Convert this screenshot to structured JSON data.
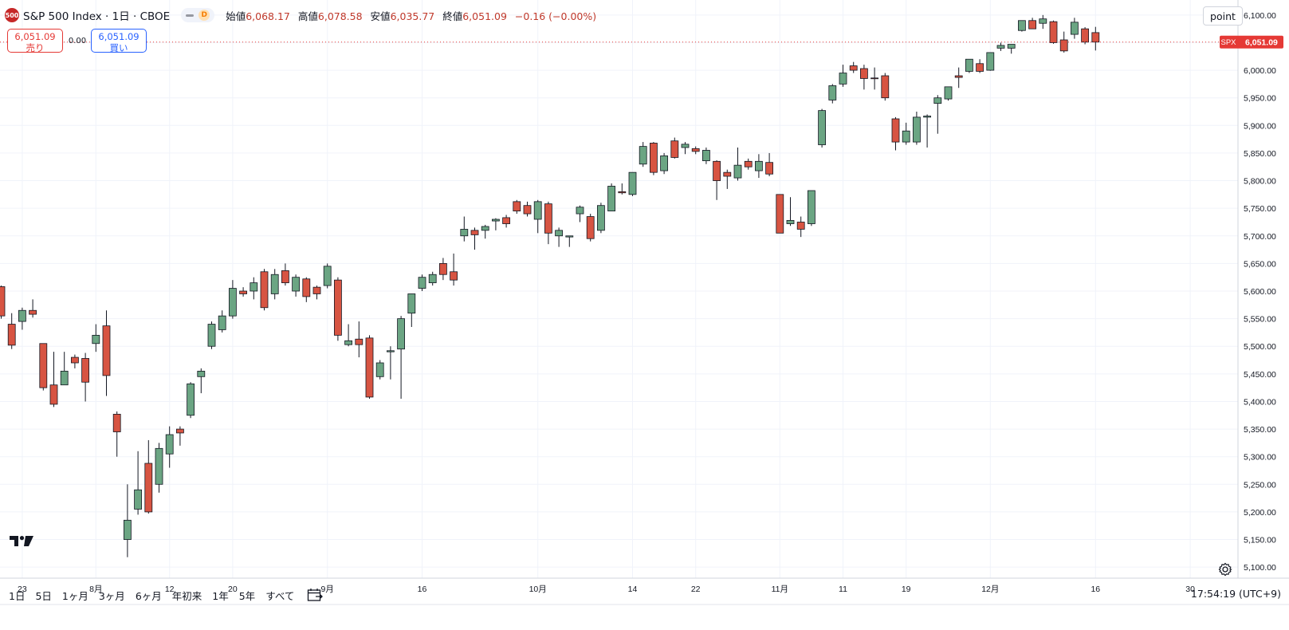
{
  "header": {
    "logo_text": "500",
    "symbol": "S&P 500 Index · 1日 · CBOE",
    "badge": "D",
    "open_label": "始値",
    "open_value": "6,068.17",
    "high_label": "高値",
    "high_value": "6,078.58",
    "low_label": "安値",
    "low_value": "6,035.77",
    "close_label": "終値",
    "close_value": "6,051.09",
    "change_value": "−0.16 (−0.00%)"
  },
  "trade": {
    "sell_price": "6,051.09",
    "sell_label": "売り",
    "spread": "0.00",
    "buy_price": "6,051.09",
    "buy_label": "買い"
  },
  "scale_button": "point",
  "bottom": {
    "ranges": [
      "1日",
      "5日",
      "1ヶ月",
      "3ヶ月",
      "6ヶ月",
      "年初来",
      "1年",
      "5年",
      "すべて"
    ],
    "clock": "17:54:19 (UTC+9)"
  },
  "colors": {
    "up": "#6ba583",
    "down": "#d75442",
    "grid": "#f0f3fa",
    "price_line": "#e53935"
  },
  "icons": [
    "tradingview-logo-icon",
    "calendar-range-icon",
    "settings-gear-icon"
  ],
  "chart_data": {
    "type": "candlestick",
    "title": "S&P 500 Index · 1日 · CBOE",
    "ylim": [
      5080,
      6120
    ],
    "y_ticks": [
      5100,
      5150,
      5200,
      5250,
      5300,
      5350,
      5400,
      5450,
      5500,
      5550,
      5600,
      5650,
      5700,
      5750,
      5800,
      5850,
      5900,
      5950,
      6000,
      6050,
      6100
    ],
    "y_tick_labels": [
      "5,100.00",
      "5,150.00",
      "5,200.00",
      "5,250.00",
      "5,300.00",
      "5,350.00",
      "5,400.00",
      "5,450.00",
      "5,500.00",
      "5,550.00",
      "5,600.00",
      "5,650.00",
      "5,700.00",
      "5,750.00",
      "5,800.00",
      "5,850.00",
      "5,900.00",
      "5,950.00",
      "6,000.00",
      "6,050.00",
      "6,100.00"
    ],
    "x_tick_labels": [
      {
        "label": "23",
        "index": 2
      },
      {
        "label": "8月",
        "index": 9
      },
      {
        "label": "12",
        "index": 16
      },
      {
        "label": "20",
        "index": 22
      },
      {
        "label": "9月",
        "index": 31
      },
      {
        "label": "16",
        "index": 40
      },
      {
        "label": "10月",
        "index": 51
      },
      {
        "label": "14",
        "index": 60
      },
      {
        "label": "22",
        "index": 66
      },
      {
        "label": "11月",
        "index": 74
      },
      {
        "label": "11",
        "index": 80
      },
      {
        "label": "19",
        "index": 86
      },
      {
        "label": "12月",
        "index": 94
      },
      {
        "label": "16",
        "index": 104
      },
      {
        "label": "30",
        "index": 113
      }
    ],
    "last_price_label": "6,051.09",
    "last_price_tag": "SPX",
    "last_price": 6051.09,
    "candles": [
      {
        "o": 5608,
        "h": 5610,
        "l": 5550,
        "c": 5555
      },
      {
        "o": 5540,
        "h": 5560,
        "l": 5495,
        "c": 5502
      },
      {
        "o": 5545,
        "h": 5570,
        "l": 5530,
        "c": 5565
      },
      {
        "o": 5565,
        "h": 5585,
        "l": 5552,
        "c": 5558
      },
      {
        "o": 5505,
        "h": 5505,
        "l": 5420,
        "c": 5425
      },
      {
        "o": 5430,
        "h": 5490,
        "l": 5390,
        "c": 5395
      },
      {
        "o": 5430,
        "h": 5490,
        "l": 5430,
        "c": 5455
      },
      {
        "o": 5480,
        "h": 5485,
        "l": 5460,
        "c": 5470
      },
      {
        "o": 5478,
        "h": 5488,
        "l": 5400,
        "c": 5435
      },
      {
        "o": 5505,
        "h": 5540,
        "l": 5490,
        "c": 5520
      },
      {
        "o": 5537,
        "h": 5565,
        "l": 5410,
        "c": 5447
      },
      {
        "o": 5377,
        "h": 5382,
        "l": 5300,
        "c": 5345
      },
      {
        "o": 5150,
        "h": 5250,
        "l": 5118,
        "c": 5185
      },
      {
        "o": 5205,
        "h": 5310,
        "l": 5195,
        "c": 5240
      },
      {
        "o": 5288,
        "h": 5330,
        "l": 5197,
        "c": 5200
      },
      {
        "o": 5250,
        "h": 5325,
        "l": 5235,
        "c": 5315
      },
      {
        "o": 5305,
        "h": 5355,
        "l": 5280,
        "c": 5340
      },
      {
        "o": 5350,
        "h": 5355,
        "l": 5320,
        "c": 5343
      },
      {
        "o": 5375,
        "h": 5435,
        "l": 5370,
        "c": 5432
      },
      {
        "o": 5445,
        "h": 5460,
        "l": 5415,
        "c": 5455
      },
      {
        "o": 5500,
        "h": 5545,
        "l": 5495,
        "c": 5540
      },
      {
        "o": 5530,
        "h": 5565,
        "l": 5525,
        "c": 5555
      },
      {
        "o": 5555,
        "h": 5620,
        "l": 5550,
        "c": 5605
      },
      {
        "o": 5600,
        "h": 5607,
        "l": 5590,
        "c": 5595
      },
      {
        "o": 5600,
        "h": 5625,
        "l": 5585,
        "c": 5615
      },
      {
        "o": 5635,
        "h": 5640,
        "l": 5565,
        "c": 5570
      },
      {
        "o": 5595,
        "h": 5640,
        "l": 5585,
        "c": 5630
      },
      {
        "o": 5637,
        "h": 5650,
        "l": 5610,
        "c": 5615
      },
      {
        "o": 5600,
        "h": 5630,
        "l": 5590,
        "c": 5625
      },
      {
        "o": 5622,
        "h": 5625,
        "l": 5580,
        "c": 5590
      },
      {
        "o": 5607,
        "h": 5610,
        "l": 5585,
        "c": 5595
      },
      {
        "o": 5610,
        "h": 5650,
        "l": 5605,
        "c": 5645
      },
      {
        "o": 5620,
        "h": 5625,
        "l": 5510,
        "c": 5520
      },
      {
        "o": 5503,
        "h": 5540,
        "l": 5500,
        "c": 5510
      },
      {
        "o": 5513,
        "h": 5545,
        "l": 5480,
        "c": 5503
      },
      {
        "o": 5515,
        "h": 5520,
        "l": 5405,
        "c": 5408
      },
      {
        "o": 5445,
        "h": 5475,
        "l": 5440,
        "c": 5470
      },
      {
        "o": 5490,
        "h": 5500,
        "l": 5440,
        "c": 5492
      },
      {
        "o": 5495,
        "h": 5555,
        "l": 5405,
        "c": 5550
      },
      {
        "o": 5560,
        "h": 5595,
        "l": 5535,
        "c": 5595
      },
      {
        "o": 5605,
        "h": 5630,
        "l": 5600,
        "c": 5625
      },
      {
        "o": 5615,
        "h": 5635,
        "l": 5610,
        "c": 5630
      },
      {
        "o": 5650,
        "h": 5660,
        "l": 5620,
        "c": 5630
      },
      {
        "o": 5635,
        "h": 5668,
        "l": 5610,
        "c": 5620
      },
      {
        "o": 5700,
        "h": 5735,
        "l": 5690,
        "c": 5712
      },
      {
        "o": 5710,
        "h": 5715,
        "l": 5675,
        "c": 5702
      },
      {
        "o": 5710,
        "h": 5720,
        "l": 5695,
        "c": 5717
      },
      {
        "o": 5727,
        "h": 5732,
        "l": 5710,
        "c": 5730
      },
      {
        "o": 5733,
        "h": 5738,
        "l": 5715,
        "c": 5722
      },
      {
        "o": 5762,
        "h": 5765,
        "l": 5740,
        "c": 5745
      },
      {
        "o": 5755,
        "h": 5762,
        "l": 5735,
        "c": 5740
      },
      {
        "o": 5730,
        "h": 5765,
        "l": 5705,
        "c": 5762
      },
      {
        "o": 5758,
        "h": 5762,
        "l": 5685,
        "c": 5705
      },
      {
        "o": 5700,
        "h": 5715,
        "l": 5680,
        "c": 5710
      },
      {
        "o": 5698,
        "h": 5700,
        "l": 5680,
        "c": 5700
      },
      {
        "o": 5740,
        "h": 5755,
        "l": 5725,
        "c": 5752
      },
      {
        "o": 5735,
        "h": 5740,
        "l": 5690,
        "c": 5695
      },
      {
        "o": 5710,
        "h": 5760,
        "l": 5705,
        "c": 5755
      },
      {
        "o": 5745,
        "h": 5795,
        "l": 5745,
        "c": 5790
      },
      {
        "o": 5780,
        "h": 5795,
        "l": 5775,
        "c": 5778
      },
      {
        "o": 5775,
        "h": 5815,
        "l": 5772,
        "c": 5815
      },
      {
        "o": 5830,
        "h": 5870,
        "l": 5825,
        "c": 5862
      },
      {
        "o": 5868,
        "h": 5870,
        "l": 5810,
        "c": 5815
      },
      {
        "o": 5818,
        "h": 5850,
        "l": 5812,
        "c": 5845
      },
      {
        "o": 5872,
        "h": 5878,
        "l": 5840,
        "c": 5842
      },
      {
        "o": 5860,
        "h": 5870,
        "l": 5848,
        "c": 5866
      },
      {
        "o": 5858,
        "h": 5862,
        "l": 5848,
        "c": 5853
      },
      {
        "o": 5836,
        "h": 5860,
        "l": 5830,
        "c": 5855
      },
      {
        "o": 5835,
        "h": 5837,
        "l": 5765,
        "c": 5800
      },
      {
        "o": 5815,
        "h": 5820,
        "l": 5785,
        "c": 5808
      },
      {
        "o": 5805,
        "h": 5860,
        "l": 5800,
        "c": 5828
      },
      {
        "o": 5835,
        "h": 5840,
        "l": 5820,
        "c": 5825
      },
      {
        "o": 5818,
        "h": 5848,
        "l": 5805,
        "c": 5835
      },
      {
        "o": 5833,
        "h": 5850,
        "l": 5808,
        "c": 5812
      },
      {
        "o": 5775,
        "h": 5775,
        "l": 5705,
        "c": 5705
      },
      {
        "o": 5722,
        "h": 5770,
        "l": 5718,
        "c": 5728
      },
      {
        "o": 5725,
        "h": 5735,
        "l": 5698,
        "c": 5712
      },
      {
        "o": 5722,
        "h": 5780,
        "l": 5718,
        "c": 5782
      },
      {
        "o": 5865,
        "h": 5930,
        "l": 5860,
        "c": 5927
      },
      {
        "o": 5946,
        "h": 5975,
        "l": 5940,
        "c": 5972
      },
      {
        "o": 5975,
        "h": 6010,
        "l": 5970,
        "c": 5995
      },
      {
        "o": 6008,
        "h": 6015,
        "l": 5995,
        "c": 6000
      },
      {
        "o": 6003,
        "h": 6010,
        "l": 5965,
        "c": 5985
      },
      {
        "o": 5986,
        "h": 6005,
        "l": 5965,
        "c": 5985
      },
      {
        "o": 5990,
        "h": 5995,
        "l": 5945,
        "c": 5950
      },
      {
        "o": 5912,
        "h": 5915,
        "l": 5855,
        "c": 5870
      },
      {
        "o": 5870,
        "h": 5905,
        "l": 5865,
        "c": 5890
      },
      {
        "o": 5870,
        "h": 5925,
        "l": 5865,
        "c": 5915
      },
      {
        "o": 5915,
        "h": 5920,
        "l": 5860,
        "c": 5917
      },
      {
        "o": 5940,
        "h": 5955,
        "l": 5885,
        "c": 5950
      },
      {
        "o": 5948,
        "h": 5970,
        "l": 5945,
        "c": 5970
      },
      {
        "o": 5990,
        "h": 6005,
        "l": 5968,
        "c": 5987
      },
      {
        "o": 5998,
        "h": 6020,
        "l": 5995,
        "c": 6020
      },
      {
        "o": 6012,
        "h": 6020,
        "l": 5995,
        "c": 5998
      },
      {
        "o": 6000,
        "h": 6032,
        "l": 5999,
        "c": 6032
      },
      {
        "o": 6040,
        "h": 6050,
        "l": 6035,
        "c": 6045
      },
      {
        "o": 6040,
        "h": 6047,
        "l": 6030,
        "c": 6047
      },
      {
        "o": 6072,
        "h": 6090,
        "l": 6070,
        "c": 6090
      },
      {
        "o": 6090,
        "h": 6095,
        "l": 6075,
        "c": 6075
      },
      {
        "o": 6085,
        "h": 6100,
        "l": 6075,
        "c": 6093
      },
      {
        "o": 6088,
        "h": 6090,
        "l": 6048,
        "c": 6050
      },
      {
        "o": 6055,
        "h": 6070,
        "l": 6032,
        "c": 6035
      },
      {
        "o": 6065,
        "h": 6095,
        "l": 6057,
        "c": 6087
      },
      {
        "o": 6075,
        "h": 6078,
        "l": 6047,
        "c": 6051
      },
      {
        "o": 6068.17,
        "h": 6078.58,
        "l": 6035.77,
        "c": 6051.09
      }
    ]
  }
}
